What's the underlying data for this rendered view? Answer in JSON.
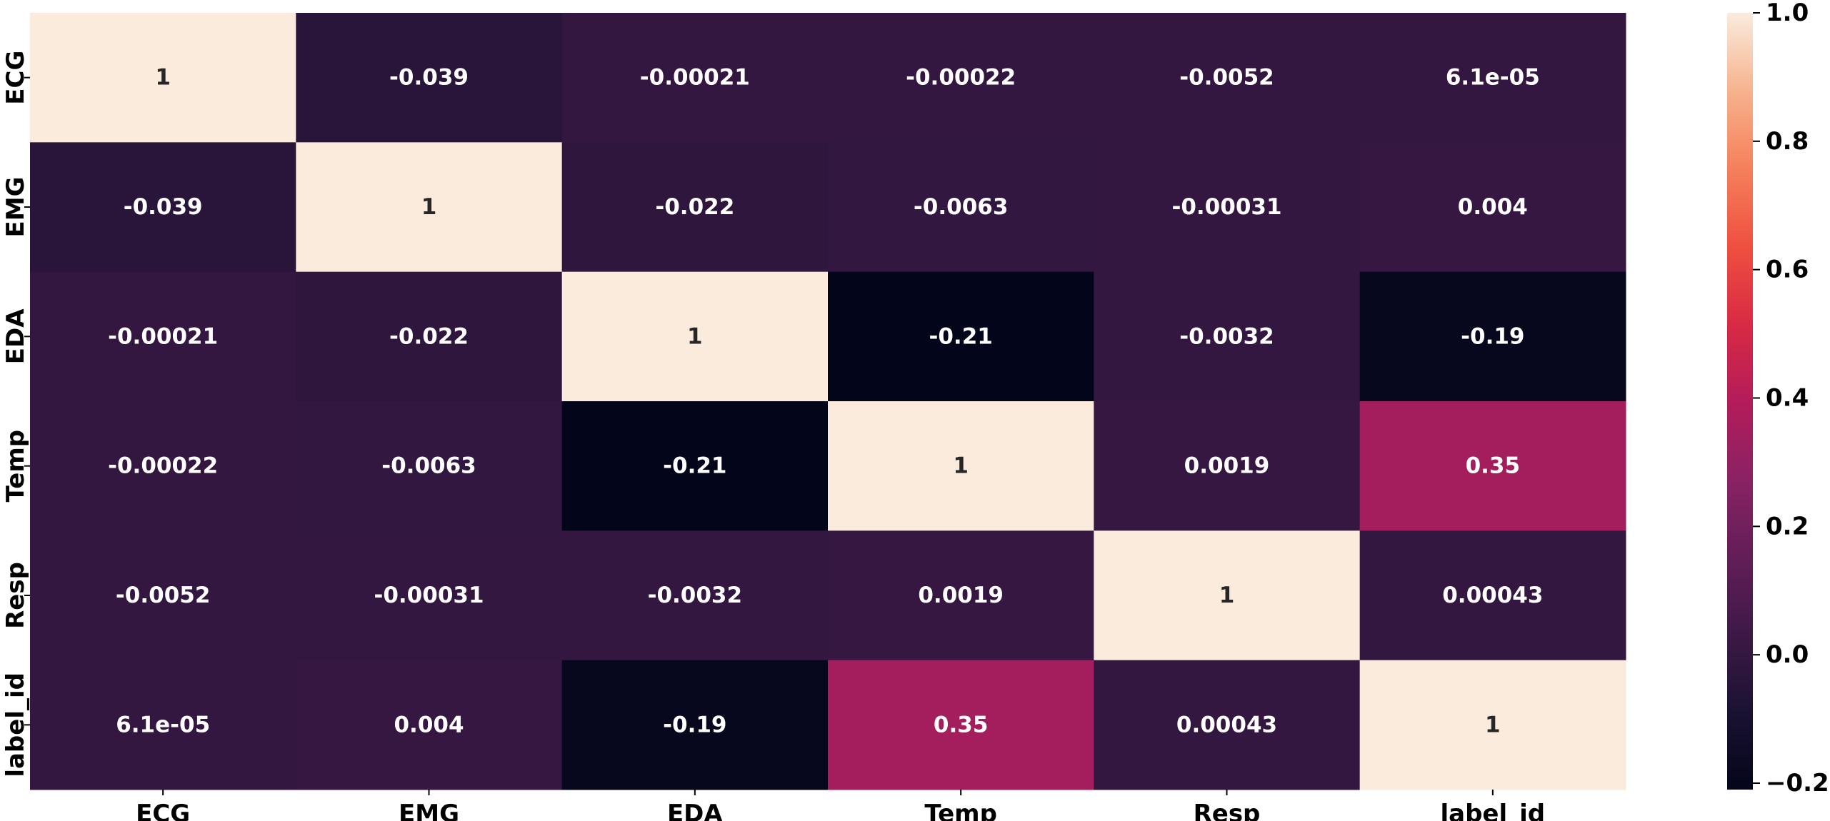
{
  "chart_data": {
    "type": "heatmap",
    "title": "",
    "xlabel": "",
    "ylabel": "",
    "row_labels": [
      "ECG",
      "EMG",
      "EDA",
      "Temp",
      "Resp",
      "label_id"
    ],
    "col_labels": [
      "ECG",
      "EMG",
      "EDA",
      "Temp",
      "Resp",
      "label_id"
    ],
    "values": [
      [
        1,
        -0.039,
        -0.00021,
        -0.00022,
        -0.0052,
        6.1e-05
      ],
      [
        -0.039,
        1,
        -0.022,
        -0.0063,
        -0.00031,
        0.004
      ],
      [
        -0.00021,
        -0.022,
        1,
        -0.21,
        -0.0032,
        -0.19
      ],
      [
        -0.00022,
        -0.0063,
        -0.21,
        1,
        0.0019,
        0.35
      ],
      [
        -0.0052,
        -0.00031,
        -0.0032,
        0.0019,
        1,
        0.00043
      ],
      [
        6.1e-05,
        0.004,
        -0.19,
        0.35,
        0.00043,
        1
      ]
    ],
    "annotations": [
      [
        "1",
        "-0.039",
        "-0.00021",
        "-0.00022",
        "-0.0052",
        "6.1e-05"
      ],
      [
        "-0.039",
        "1",
        "-0.022",
        "-0.0063",
        "-0.00031",
        "0.004"
      ],
      [
        "-0.00021",
        "-0.022",
        "1",
        "-0.21",
        "-0.0032",
        "-0.19"
      ],
      [
        "-0.00022",
        "-0.0063",
        "-0.21",
        "1",
        "0.0019",
        "0.35"
      ],
      [
        "-0.0052",
        "-0.00031",
        "-0.0032",
        "0.0019",
        "1",
        "0.00043"
      ],
      [
        "6.1e-05",
        "0.004",
        "-0.19",
        "0.35",
        "0.00043",
        "1"
      ]
    ],
    "colormap": "rocket",
    "vmin": -0.21,
    "vmax": 1,
    "colorbar_ticks": [
      1.0,
      0.8,
      0.6,
      0.4,
      0.2,
      0.0,
      -0.2
    ],
    "colorbar_tick_labels": [
      "1.0",
      "0.8",
      "0.6",
      "0.4",
      "0.2",
      "0.0",
      "−0.2"
    ]
  }
}
